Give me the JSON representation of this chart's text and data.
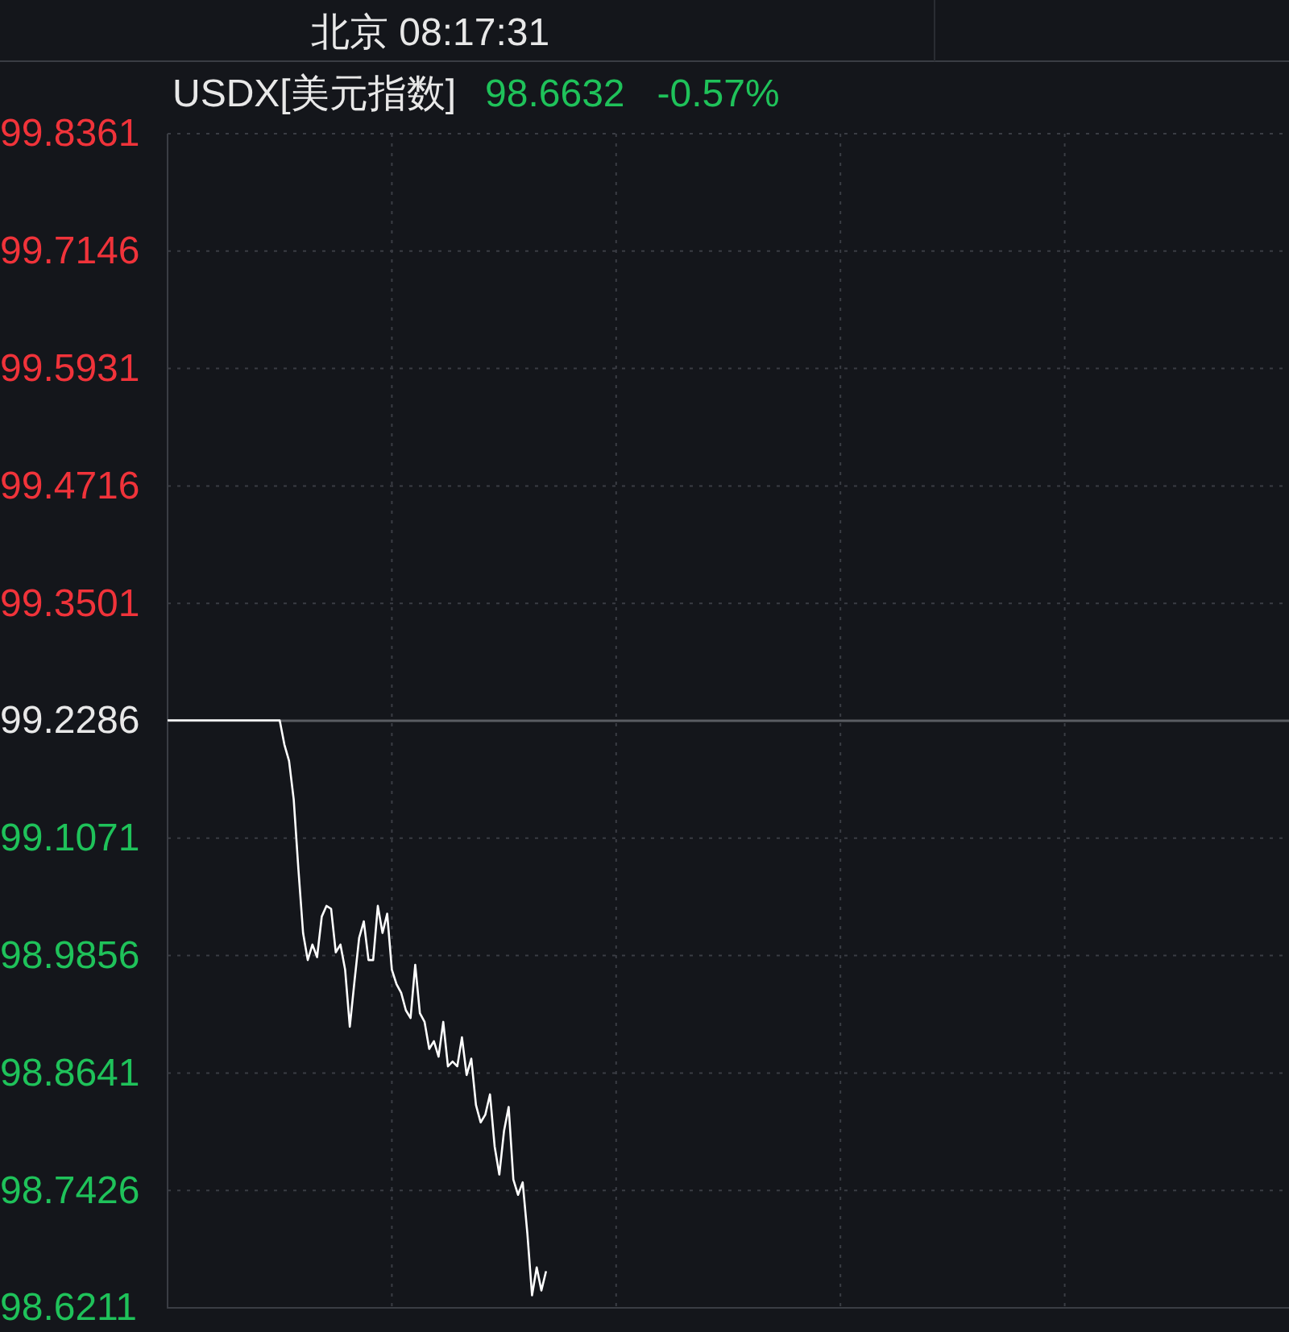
{
  "chart_data": {
    "type": "line",
    "title": "北京 08:17:31",
    "subtitle": "USDX[美元指数]",
    "annotations": [
      "98.6632",
      "-0.57%"
    ],
    "categories": [
      null,
      null,
      null,
      null,
      null,
      null,
      null,
      null,
      null,
      null,
      null,
      null,
      null,
      null,
      null,
      null,
      null,
      null,
      null,
      null,
      null,
      null,
      null,
      null,
      null,
      null,
      null,
      null,
      null,
      null,
      null,
      null,
      null,
      null,
      null,
      null,
      null,
      null,
      null,
      null,
      null,
      null,
      null,
      null,
      null,
      null,
      null,
      null,
      null,
      null,
      null,
      null,
      null,
      null,
      null,
      null,
      null,
      null,
      null,
      null,
      null,
      null,
      null,
      null,
      null,
      null,
      null,
      null,
      null,
      null,
      null,
      null,
      null,
      null,
      null,
      null,
      null,
      null,
      null,
      null,
      null,
      null,
      null,
      null,
      null,
      null,
      null,
      null,
      null,
      null,
      null,
      null,
      null,
      null,
      null,
      null,
      null,
      null,
      null,
      null,
      null,
      null,
      null,
      null,
      null,
      null,
      null,
      null,
      null,
      null,
      null,
      null,
      null,
      null,
      null,
      null,
      null,
      null,
      null,
      null,
      null,
      null,
      null,
      null,
      null,
      null,
      null,
      null,
      null,
      null,
      null,
      null,
      null,
      null,
      null,
      null,
      null,
      null,
      null,
      null,
      null,
      null,
      null,
      null,
      null,
      null,
      null,
      null,
      null,
      null,
      null,
      null,
      null,
      null,
      null,
      null,
      null,
      null,
      null,
      null,
      null,
      null,
      null,
      null,
      null,
      null,
      null,
      null,
      null,
      null,
      null,
      null,
      null,
      null,
      null,
      null,
      null,
      null,
      null,
      null,
      null,
      null,
      null,
      null,
      null,
      null,
      null,
      null,
      null,
      null,
      null,
      null,
      null,
      null,
      null,
      null,
      null,
      null,
      null,
      null,
      null,
      null,
      null,
      null,
      null,
      null,
      null,
      null,
      null,
      null,
      null,
      null,
      null,
      null,
      null,
      null,
      null,
      null,
      null,
      null,
      null,
      null,
      null,
      null,
      null,
      null,
      null,
      null,
      null,
      null,
      null,
      null,
      null,
      null,
      null,
      null,
      null,
      null,
      null,
      null,
      null
    ],
    "series": [
      {
        "color": "#ffffff",
        "values": [
          99.229,
          99.229,
          99.229,
          99.229,
          99.229,
          99.229,
          99.229,
          99.229,
          99.229,
          99.229,
          99.229,
          99.229,
          99.229,
          99.229,
          99.229,
          99.229,
          99.229,
          99.229,
          99.229,
          99.229,
          99.229,
          99.229,
          99.229,
          99.229,
          99.229,
          99.204,
          99.187,
          99.147,
          99.075,
          99.009,
          98.981,
          98.997,
          98.984,
          99.026,
          99.037,
          99.034,
          98.989,
          98.997,
          98.971,
          98.912,
          98.959,
          99.004,
          99.021,
          98.981,
          98.981,
          99.037,
          99.009,
          99.029,
          98.971,
          98.956,
          98.947,
          98.929,
          98.921,
          98.976,
          98.926,
          98.917,
          98.889,
          98.897,
          98.881,
          98.917,
          98.871,
          98.876,
          98.871,
          98.901,
          98.862,
          98.879,
          98.831,
          98.813,
          98.821,
          98.842,
          98.788,
          98.759,
          98.804,
          98.829,
          98.754,
          98.738,
          98.751,
          98.698,
          98.634,
          98.663,
          98.639,
          98.659,
          null,
          null,
          null,
          null,
          null,
          null,
          null,
          null,
          null,
          null,
          null,
          null,
          null,
          null,
          null,
          null,
          null,
          null,
          null,
          null,
          null,
          null,
          null,
          null,
          null,
          null,
          null,
          null,
          null,
          null,
          null,
          null,
          null,
          null,
          null,
          null,
          null,
          null,
          null,
          null,
          null,
          null,
          null,
          null,
          null,
          null,
          null,
          null,
          null,
          null,
          null,
          null,
          null,
          null,
          null,
          null,
          null,
          null,
          null,
          null,
          null,
          null,
          null,
          null,
          null,
          null,
          null,
          null,
          null,
          null,
          null,
          null,
          null,
          null,
          null,
          null,
          null,
          null,
          null,
          null,
          null,
          null,
          null,
          null,
          null,
          null,
          null,
          null,
          null,
          null,
          null,
          null,
          null,
          null,
          null,
          null,
          null,
          null,
          null,
          null,
          null,
          null,
          null,
          null,
          null,
          null,
          null,
          null,
          null,
          null,
          null,
          null,
          null,
          null,
          null,
          null,
          null,
          null,
          null,
          null,
          null,
          null,
          null,
          null,
          null,
          null,
          null,
          null,
          null,
          null,
          null,
          null,
          null,
          null,
          null,
          null,
          null,
          null,
          null,
          null,
          null,
          null,
          null,
          null,
          null,
          null,
          null,
          null,
          null,
          null,
          null,
          null,
          null,
          null,
          null,
          null,
          null,
          null,
          null
        ]
      }
    ],
    "ylim": [
      98.6211,
      99.8361
    ],
    "yticks": [
      99.8361,
      99.7146,
      99.5931,
      99.4716,
      99.3501,
      99.2286,
      99.1071,
      98.9856,
      98.8641,
      98.7426,
      98.6211
    ],
    "ref_lines": [
      {
        "axis": "y",
        "value": 99.2286,
        "color": "#5a5d63"
      }
    ],
    "grid": true,
    "tick_labels": "y",
    "marker": "none",
    "line_style": "solid"
  }
}
